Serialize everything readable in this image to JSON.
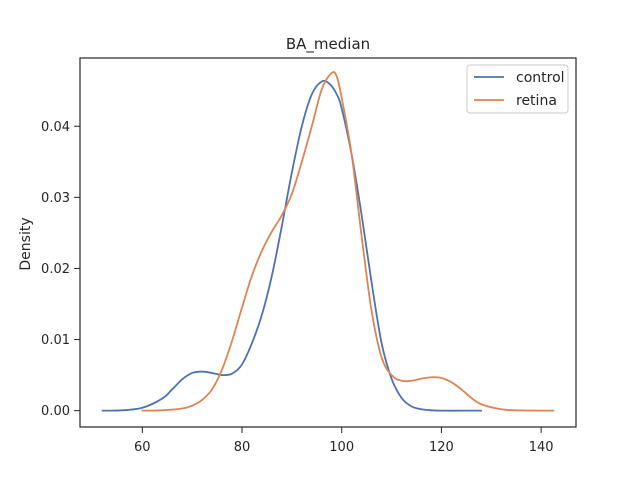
{
  "chart_data": {
    "type": "line",
    "title": "BA_median",
    "xlabel": "",
    "ylabel": "Density",
    "xlim": [
      47.5,
      147
    ],
    "ylim": [
      -0.0023,
      0.0496
    ],
    "x_ticks": [
      60,
      80,
      100,
      120,
      140
    ],
    "x_tick_labels": [
      "60",
      "80",
      "100",
      "120",
      "140"
    ],
    "y_ticks": [
      0.0,
      0.01,
      0.02,
      0.03,
      0.04
    ],
    "y_tick_labels": [
      "0.00",
      "0.01",
      "0.02",
      "0.03",
      "0.04"
    ],
    "grid": false,
    "legend_position": "top-right",
    "series": [
      {
        "name": "control",
        "color": "#4c72b0",
        "x": [
          52,
          56,
          60,
          64,
          66,
          68,
          70,
          72,
          74,
          76,
          78,
          80,
          82,
          84,
          86,
          88,
          90,
          92,
          94,
          96,
          97.5,
          99,
          100,
          102,
          104,
          106,
          108,
          110,
          112,
          114,
          116,
          118,
          120,
          124,
          128
        ],
        "y": [
          0.0,
          5e-05,
          0.0004,
          0.0017,
          0.003,
          0.0044,
          0.0053,
          0.0055,
          0.0053,
          0.005,
          0.0052,
          0.0065,
          0.0095,
          0.0135,
          0.019,
          0.026,
          0.0335,
          0.04,
          0.0445,
          0.0463,
          0.046,
          0.0445,
          0.0425,
          0.036,
          0.0275,
          0.018,
          0.0095,
          0.0045,
          0.0018,
          0.0006,
          0.0002,
          5e-05,
          0.0,
          0.0,
          0.0
        ]
      },
      {
        "name": "retina",
        "color": "#dd8452",
        "x": [
          60,
          64,
          68,
          70,
          72,
          74,
          76,
          78,
          80,
          82,
          84,
          86,
          88,
          90,
          92,
          94,
          96,
          98,
          99,
          100,
          102,
          104,
          106,
          108,
          110,
          112,
          114,
          116,
          118,
          120,
          122,
          124,
          126,
          128,
          132,
          136,
          142.5
        ],
        "y": [
          0.0,
          5e-05,
          0.0003,
          0.0007,
          0.0015,
          0.003,
          0.0058,
          0.0098,
          0.0145,
          0.019,
          0.0225,
          0.0252,
          0.0275,
          0.0305,
          0.035,
          0.04,
          0.0452,
          0.0475,
          0.047,
          0.044,
          0.036,
          0.0245,
          0.014,
          0.0075,
          0.005,
          0.0042,
          0.0042,
          0.0045,
          0.0047,
          0.0046,
          0.004,
          0.003,
          0.0018,
          0.0009,
          0.0002,
          3e-05,
          0.0
        ]
      }
    ]
  }
}
